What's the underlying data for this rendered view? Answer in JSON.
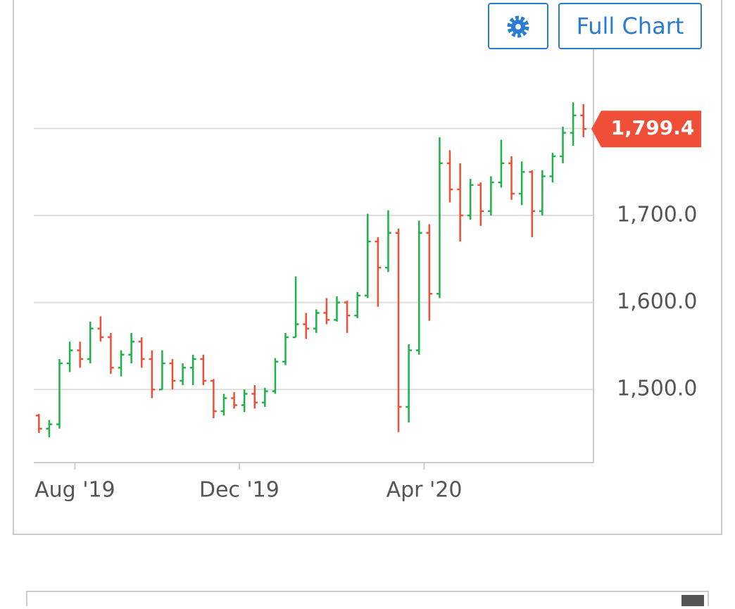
{
  "chart_data": {
    "type": "ohlc",
    "buttons": [
      "Full Chart"
    ],
    "categories": [
      null,
      null,
      null,
      null,
      "Aug '19",
      null,
      null,
      null,
      null,
      null,
      null,
      null,
      null,
      null,
      null,
      null,
      null,
      null,
      null,
      null,
      "Dec '19",
      null,
      null,
      null,
      null,
      null,
      null,
      null,
      null,
      null,
      null,
      null,
      null,
      null,
      null,
      null,
      null,
      null,
      "Apr '20",
      null,
      null,
      null,
      null,
      null,
      null,
      null,
      null,
      null,
      null,
      null,
      null,
      null,
      null,
      null
    ],
    "series": {
      "open": [
        1470,
        1455,
        1460,
        1530,
        1545,
        1535,
        1570,
        1560,
        1525,
        1540,
        1555,
        1535,
        1500,
        1530,
        1510,
        1525,
        1535,
        1510,
        1475,
        1490,
        1482,
        1495,
        1485,
        1498,
        1532,
        1560,
        1575,
        1570,
        1588,
        1580,
        1600,
        1585,
        1608,
        1670,
        1640,
        1680,
        1480,
        1545,
        1680,
        1610,
        1760,
        1730,
        1700,
        1735,
        1705,
        1738,
        1760,
        1725,
        1750,
        1705,
        1745,
        1768,
        1795,
        1815
      ],
      "high": [
        1472,
        1465,
        1535,
        1555,
        1555,
        1578,
        1584,
        1565,
        1545,
        1565,
        1560,
        1545,
        1545,
        1535,
        1530,
        1540,
        1540,
        1512,
        1495,
        1497,
        1500,
        1505,
        1502,
        1536,
        1565,
        1630,
        1588,
        1592,
        1605,
        1607,
        1602,
        1612,
        1702,
        1675,
        1706,
        1685,
        1552,
        1694,
        1690,
        1790,
        1775,
        1760,
        1742,
        1738,
        1745,
        1787,
        1768,
        1762,
        1752,
        1752,
        1772,
        1802,
        1830,
        1828
      ],
      "low": [
        1450,
        1445,
        1455,
        1520,
        1525,
        1530,
        1555,
        1518,
        1515,
        1530,
        1525,
        1490,
        1500,
        1500,
        1505,
        1505,
        1505,
        1467,
        1470,
        1478,
        1474,
        1478,
        1480,
        1495,
        1528,
        1560,
        1558,
        1565,
        1575,
        1578,
        1565,
        1582,
        1605,
        1595,
        1635,
        1451,
        1462,
        1540,
        1579,
        1605,
        1715,
        1670,
        1695,
        1688,
        1700,
        1732,
        1718,
        1712,
        1675,
        1700,
        1738,
        1760,
        1780,
        1790
      ],
      "close": [
        1455,
        1460,
        1530,
        1545,
        1535,
        1570,
        1560,
        1525,
        1540,
        1555,
        1535,
        1500,
        1530,
        1510,
        1525,
        1535,
        1510,
        1475,
        1490,
        1482,
        1495,
        1485,
        1498,
        1532,
        1560,
        1575,
        1570,
        1588,
        1580,
        1600,
        1585,
        1608,
        1670,
        1640,
        1680,
        1480,
        1545,
        1680,
        1610,
        1760,
        1730,
        1700,
        1735,
        1705,
        1738,
        1760,
        1725,
        1750,
        1705,
        1745,
        1768,
        1795,
        1815,
        1799.4
      ]
    },
    "up_color": "#1fb14a",
    "down_color": "#ef4f37",
    "last_price": {
      "value": 1799.4,
      "label": "1,799.4"
    },
    "ylim": [
      1416,
      1891
    ],
    "yticks": [
      {
        "value": 1500,
        "label": "1,500.0"
      },
      {
        "value": 1600,
        "label": "1,600.0"
      },
      {
        "value": 1700,
        "label": "1,700.0"
      },
      1800
    ],
    "grid": true
  }
}
